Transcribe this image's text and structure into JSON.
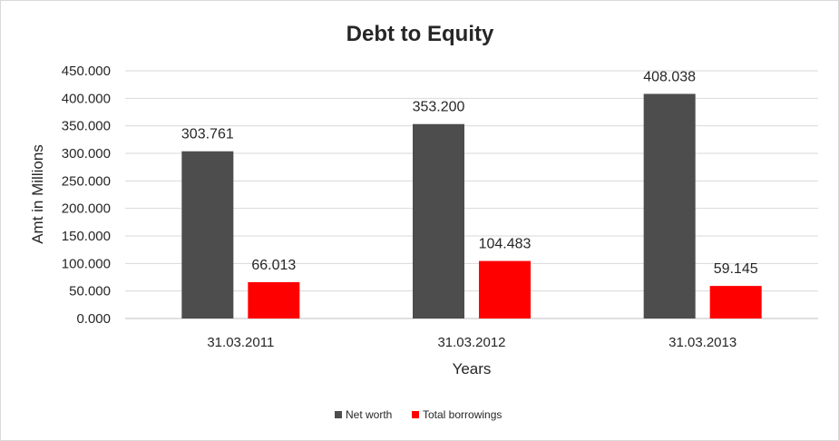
{
  "chart_data": {
    "type": "bar",
    "title": "Debt to Equity",
    "xlabel": "Years",
    "ylabel": "Amt in Millions",
    "categories": [
      "31.03.2011",
      "31.03.2012",
      "31.03.2013"
    ],
    "series": [
      {
        "name": "Net worth",
        "values": [
          303.761,
          353.2,
          408.038
        ],
        "labels": [
          "303.761",
          "353.200",
          "408.038"
        ],
        "color": "#4d4d4d"
      },
      {
        "name": "Total borrowings",
        "values": [
          66.013,
          104.483,
          59.145
        ],
        "labels": [
          "66.013",
          "104.483",
          "59.145"
        ],
        "color": "#ff0000"
      }
    ],
    "ylim": [
      0,
      450
    ],
    "yticks": [
      0,
      50,
      100,
      150,
      200,
      250,
      300,
      350,
      400,
      450
    ],
    "ytick_labels": [
      "0.000",
      "50.000",
      "100.000",
      "150.000",
      "200.000",
      "250.000",
      "300.000",
      "350.000",
      "400.000",
      "450.000"
    ],
    "grid": true,
    "legend_position": "bottom"
  }
}
